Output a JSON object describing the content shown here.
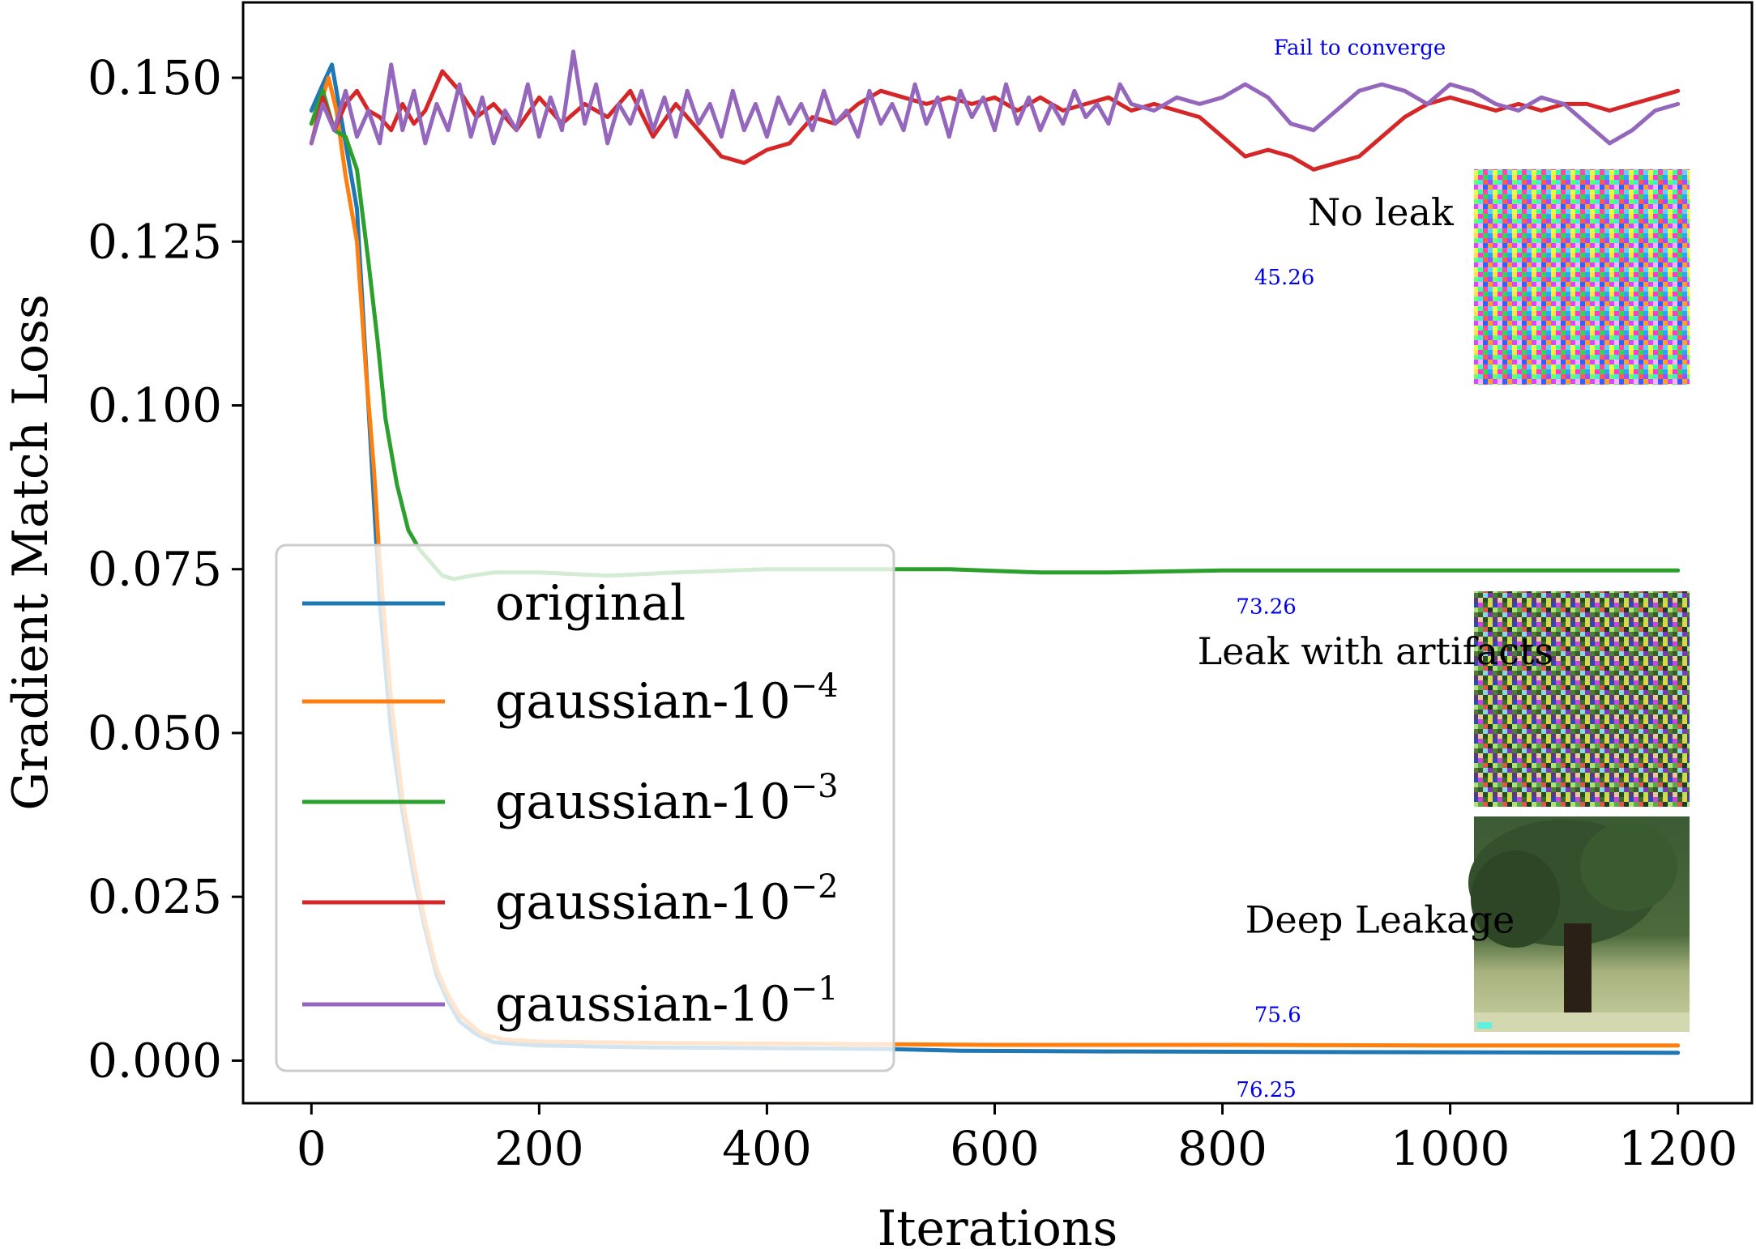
{
  "chart_data": {
    "type": "line",
    "xlabel": "Iterations",
    "ylabel": "Gradient Match Loss",
    "xlim": [
      -60,
      1265
    ],
    "ylim": [
      -0.0065,
      0.1615
    ],
    "xticks": [
      0,
      200,
      400,
      600,
      800,
      1000,
      1200
    ],
    "xtick_labels": [
      "0",
      "200",
      "400",
      "600",
      "800",
      "1000",
      "1200"
    ],
    "yticks": [
      0.0,
      0.025,
      0.05,
      0.075,
      0.1,
      0.125,
      0.15
    ],
    "ytick_labels": [
      "0.000",
      "0.025",
      "0.050",
      "0.075",
      "0.100",
      "0.125",
      "0.150"
    ],
    "legend_position": "lower-left",
    "grid": false,
    "series": [
      {
        "name": "original",
        "label_base": "original",
        "exponent": "",
        "color": "#1f77b4",
        "points": [
          [
            0,
            0.145
          ],
          [
            10,
            0.149
          ],
          [
            18,
            0.152
          ],
          [
            30,
            0.14
          ],
          [
            40,
            0.13
          ],
          [
            50,
            0.1
          ],
          [
            55,
            0.085
          ],
          [
            60,
            0.07
          ],
          [
            70,
            0.05
          ],
          [
            80,
            0.038
          ],
          [
            90,
            0.028
          ],
          [
            100,
            0.02
          ],
          [
            110,
            0.013
          ],
          [
            120,
            0.009
          ],
          [
            130,
            0.006
          ],
          [
            145,
            0.004
          ],
          [
            160,
            0.0028
          ],
          [
            200,
            0.0023
          ],
          [
            300,
            0.002
          ],
          [
            400,
            0.0019
          ],
          [
            500,
            0.0018
          ],
          [
            570,
            0.0015
          ],
          [
            700,
            0.0014
          ],
          [
            900,
            0.0013
          ],
          [
            1200,
            0.0012
          ]
        ]
      },
      {
        "name": "gaussian-10^-4",
        "label_base": "gaussian-10",
        "exponent": "−4",
        "color": "#ff7f0e",
        "points": [
          [
            0,
            0.143
          ],
          [
            8,
            0.146
          ],
          [
            15,
            0.15
          ],
          [
            22,
            0.145
          ],
          [
            30,
            0.135
          ],
          [
            40,
            0.125
          ],
          [
            48,
            0.105
          ],
          [
            55,
            0.09
          ],
          [
            60,
            0.076
          ],
          [
            70,
            0.055
          ],
          [
            80,
            0.04
          ],
          [
            90,
            0.03
          ],
          [
            100,
            0.021
          ],
          [
            110,
            0.014
          ],
          [
            120,
            0.01
          ],
          [
            130,
            0.007
          ],
          [
            150,
            0.004
          ],
          [
            170,
            0.0032
          ],
          [
            200,
            0.0029
          ],
          [
            300,
            0.0027
          ],
          [
            400,
            0.0026
          ],
          [
            500,
            0.0025
          ],
          [
            600,
            0.0024
          ],
          [
            800,
            0.0024
          ],
          [
            1000,
            0.0023
          ],
          [
            1200,
            0.0023
          ]
        ]
      },
      {
        "name": "gaussian-10^-3",
        "label_base": "gaussian-10",
        "exponent": "−3",
        "color": "#2ca02c",
        "points": [
          [
            0,
            0.143
          ],
          [
            10,
            0.148
          ],
          [
            20,
            0.142
          ],
          [
            30,
            0.141
          ],
          [
            40,
            0.136
          ],
          [
            50,
            0.122
          ],
          [
            58,
            0.11
          ],
          [
            65,
            0.098
          ],
          [
            75,
            0.088
          ],
          [
            85,
            0.081
          ],
          [
            95,
            0.078
          ],
          [
            105,
            0.076
          ],
          [
            115,
            0.074
          ],
          [
            125,
            0.0735
          ],
          [
            140,
            0.074
          ],
          [
            160,
            0.0745
          ],
          [
            200,
            0.0745
          ],
          [
            260,
            0.074
          ],
          [
            320,
            0.0745
          ],
          [
            400,
            0.075
          ],
          [
            500,
            0.075
          ],
          [
            560,
            0.075
          ],
          [
            640,
            0.0745
          ],
          [
            700,
            0.0745
          ],
          [
            800,
            0.0748
          ],
          [
            1000,
            0.0748
          ],
          [
            1200,
            0.0748
          ]
        ]
      },
      {
        "name": "gaussian-10^-2",
        "label_base": "gaussian-10",
        "exponent": "−2",
        "color": "#d62728",
        "points": [
          [
            0,
            0.14
          ],
          [
            10,
            0.147
          ],
          [
            20,
            0.142
          ],
          [
            30,
            0.146
          ],
          [
            40,
            0.148
          ],
          [
            50,
            0.145
          ],
          [
            60,
            0.144
          ],
          [
            70,
            0.142
          ],
          [
            80,
            0.146
          ],
          [
            90,
            0.143
          ],
          [
            100,
            0.145
          ],
          [
            115,
            0.151
          ],
          [
            130,
            0.148
          ],
          [
            145,
            0.144
          ],
          [
            160,
            0.146
          ],
          [
            180,
            0.142
          ],
          [
            200,
            0.147
          ],
          [
            220,
            0.143
          ],
          [
            240,
            0.146
          ],
          [
            260,
            0.144
          ],
          [
            280,
            0.148
          ],
          [
            300,
            0.141
          ],
          [
            320,
            0.146
          ],
          [
            340,
            0.142
          ],
          [
            360,
            0.138
          ],
          [
            380,
            0.137
          ],
          [
            400,
            0.139
          ],
          [
            420,
            0.14
          ],
          [
            440,
            0.144
          ],
          [
            460,
            0.143
          ],
          [
            480,
            0.146
          ],
          [
            500,
            0.148
          ],
          [
            520,
            0.147
          ],
          [
            540,
            0.146
          ],
          [
            560,
            0.147
          ],
          [
            580,
            0.146
          ],
          [
            600,
            0.147
          ],
          [
            620,
            0.145
          ],
          [
            640,
            0.147
          ],
          [
            660,
            0.145
          ],
          [
            680,
            0.146
          ],
          [
            700,
            0.147
          ],
          [
            720,
            0.145
          ],
          [
            740,
            0.146
          ],
          [
            760,
            0.145
          ],
          [
            780,
            0.144
          ],
          [
            800,
            0.141
          ],
          [
            820,
            0.138
          ],
          [
            840,
            0.139
          ],
          [
            860,
            0.138
          ],
          [
            880,
            0.136
          ],
          [
            900,
            0.137
          ],
          [
            920,
            0.138
          ],
          [
            940,
            0.141
          ],
          [
            960,
            0.144
          ],
          [
            980,
            0.146
          ],
          [
            1000,
            0.147
          ],
          [
            1020,
            0.146
          ],
          [
            1040,
            0.145
          ],
          [
            1060,
            0.146
          ],
          [
            1080,
            0.145
          ],
          [
            1100,
            0.146
          ],
          [
            1120,
            0.146
          ],
          [
            1140,
            0.145
          ],
          [
            1160,
            0.146
          ],
          [
            1180,
            0.147
          ],
          [
            1200,
            0.148
          ]
        ]
      },
      {
        "name": "gaussian-10^-1",
        "label_base": "gaussian-10",
        "exponent": "−1",
        "color": "#9467bd",
        "points": [
          [
            0,
            0.14
          ],
          [
            10,
            0.146
          ],
          [
            20,
            0.142
          ],
          [
            30,
            0.148
          ],
          [
            40,
            0.141
          ],
          [
            50,
            0.145
          ],
          [
            60,
            0.14
          ],
          [
            70,
            0.152
          ],
          [
            80,
            0.142
          ],
          [
            90,
            0.148
          ],
          [
            100,
            0.14
          ],
          [
            110,
            0.146
          ],
          [
            120,
            0.142
          ],
          [
            130,
            0.149
          ],
          [
            140,
            0.141
          ],
          [
            150,
            0.147
          ],
          [
            160,
            0.14
          ],
          [
            170,
            0.145
          ],
          [
            180,
            0.142
          ],
          [
            190,
            0.149
          ],
          [
            200,
            0.141
          ],
          [
            210,
            0.147
          ],
          [
            220,
            0.142
          ],
          [
            230,
            0.154
          ],
          [
            240,
            0.143
          ],
          [
            250,
            0.149
          ],
          [
            260,
            0.14
          ],
          [
            270,
            0.146
          ],
          [
            280,
            0.143
          ],
          [
            290,
            0.148
          ],
          [
            300,
            0.142
          ],
          [
            310,
            0.147
          ],
          [
            320,
            0.141
          ],
          [
            330,
            0.148
          ],
          [
            340,
            0.143
          ],
          [
            350,
            0.146
          ],
          [
            360,
            0.141
          ],
          [
            370,
            0.148
          ],
          [
            380,
            0.142
          ],
          [
            390,
            0.146
          ],
          [
            400,
            0.141
          ],
          [
            410,
            0.147
          ],
          [
            420,
            0.143
          ],
          [
            430,
            0.146
          ],
          [
            440,
            0.142
          ],
          [
            450,
            0.148
          ],
          [
            460,
            0.143
          ],
          [
            470,
            0.145
          ],
          [
            480,
            0.141
          ],
          [
            490,
            0.148
          ],
          [
            500,
            0.143
          ],
          [
            510,
            0.146
          ],
          [
            520,
            0.142
          ],
          [
            530,
            0.149
          ],
          [
            540,
            0.143
          ],
          [
            550,
            0.147
          ],
          [
            560,
            0.141
          ],
          [
            570,
            0.148
          ],
          [
            580,
            0.144
          ],
          [
            590,
            0.147
          ],
          [
            600,
            0.142
          ],
          [
            610,
            0.149
          ],
          [
            620,
            0.143
          ],
          [
            630,
            0.147
          ],
          [
            640,
            0.142
          ],
          [
            650,
            0.146
          ],
          [
            660,
            0.143
          ],
          [
            670,
            0.148
          ],
          [
            680,
            0.144
          ],
          [
            690,
            0.146
          ],
          [
            700,
            0.143
          ],
          [
            710,
            0.149
          ],
          [
            720,
            0.146
          ],
          [
            740,
            0.145
          ],
          [
            760,
            0.147
          ],
          [
            780,
            0.146
          ],
          [
            800,
            0.147
          ],
          [
            820,
            0.149
          ],
          [
            840,
            0.147
          ],
          [
            860,
            0.143
          ],
          [
            880,
            0.142
          ],
          [
            900,
            0.145
          ],
          [
            920,
            0.148
          ],
          [
            940,
            0.149
          ],
          [
            960,
            0.148
          ],
          [
            980,
            0.146
          ],
          [
            1000,
            0.149
          ],
          [
            1020,
            0.148
          ],
          [
            1040,
            0.146
          ],
          [
            1060,
            0.145
          ],
          [
            1080,
            0.147
          ],
          [
            1100,
            0.146
          ],
          [
            1120,
            0.143
          ],
          [
            1140,
            0.14
          ],
          [
            1160,
            0.142
          ],
          [
            1180,
            0.145
          ],
          [
            1200,
            0.146
          ]
        ]
      }
    ],
    "annotations": [
      {
        "id": "fail",
        "text": "Fail to converge",
        "x": 845,
        "y": 0.1535,
        "color": "#0000ee",
        "size": 26
      },
      {
        "id": "no-leak",
        "text": "No leak",
        "x": 875,
        "y": 0.1275,
        "color": "#000000",
        "size": 46
      },
      {
        "id": "val-45",
        "text": "45.26",
        "x": 828,
        "y": 0.1185,
        "color": "#0000ee",
        "size": 26
      },
      {
        "id": "val-73",
        "text": "73.26",
        "x": 812,
        "y": 0.0682,
        "color": "#0000ee",
        "size": 26
      },
      {
        "id": "leak-artifacts",
        "text": "Leak with artifacts",
        "x": 778,
        "y": 0.0605,
        "color": "#000000",
        "size": 46
      },
      {
        "id": "deep-leakage",
        "text": "Deep Leakage",
        "x": 820,
        "y": 0.0195,
        "color": "#000000",
        "size": 46
      },
      {
        "id": "val-756",
        "text": "75.6",
        "x": 828,
        "y": 0.0059,
        "color": "#0000ee",
        "size": 26
      },
      {
        "id": "val-7625",
        "text": "76.25",
        "x": 812,
        "y": -0.0055,
        "color": "#0000ee",
        "size": 26
      }
    ]
  }
}
